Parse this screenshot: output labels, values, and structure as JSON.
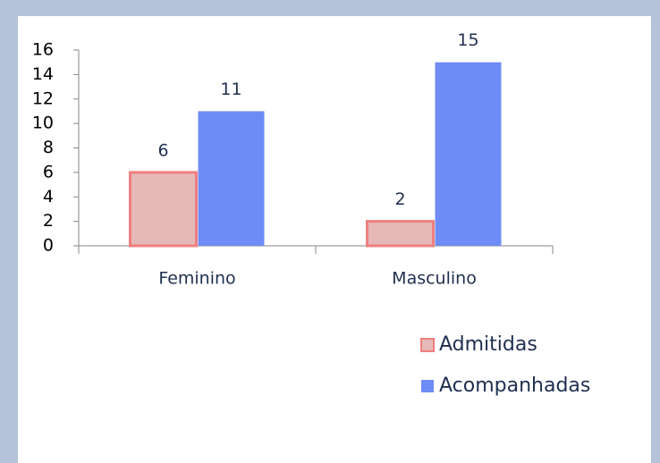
{
  "chart_data": {
    "type": "bar",
    "categories": [
      "Feminino",
      "Masculino"
    ],
    "series": [
      {
        "name": "Admitidas",
        "color": "#e6b9b8",
        "edge": "#f07f7f",
        "values": [
          6,
          2
        ]
      },
      {
        "name": "Acompanhadas",
        "color": "#6e8cf5",
        "values": [
          11,
          15
        ]
      }
    ],
    "ylim": [
      0,
      16
    ],
    "yticks": [
      0,
      2,
      4,
      6,
      8,
      10,
      12,
      14,
      16
    ],
    "legend": "bottom-right",
    "value_labels_shown": true
  }
}
